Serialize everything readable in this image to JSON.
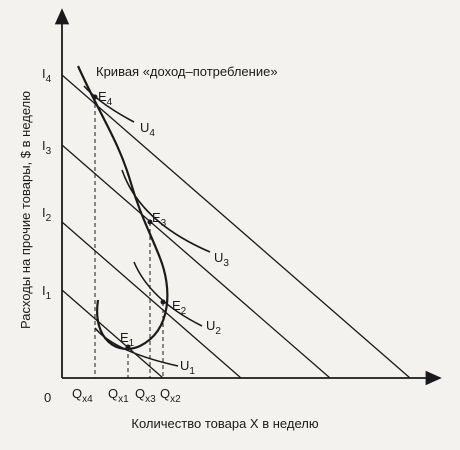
{
  "curve_label": "Кривая «доход–потребление»",
  "y_axis_label": "Расходы на прочие товары, $ в неделю",
  "x_axis_label": "Количество товара X в неделю",
  "origin": "0",
  "income_levels": [
    {
      "base": "I",
      "sub": "1"
    },
    {
      "base": "I",
      "sub": "2"
    },
    {
      "base": "I",
      "sub": "3"
    },
    {
      "base": "I",
      "sub": "4"
    }
  ],
  "equilibria": [
    {
      "base": "E",
      "sub": "1"
    },
    {
      "base": "E",
      "sub": "2"
    },
    {
      "base": "E",
      "sub": "3"
    },
    {
      "base": "E",
      "sub": "4"
    }
  ],
  "utility_curves": [
    {
      "base": "U",
      "sub": "1"
    },
    {
      "base": "U",
      "sub": "2"
    },
    {
      "base": "U",
      "sub": "3"
    },
    {
      "base": "U",
      "sub": "4"
    }
  ],
  "quantities": [
    {
      "base": "Q",
      "sub": "x4"
    },
    {
      "base": "Q",
      "sub": "x1"
    },
    {
      "base": "Q",
      "sub": "x3"
    },
    {
      "base": "Q",
      "sub": "x2"
    }
  ]
}
